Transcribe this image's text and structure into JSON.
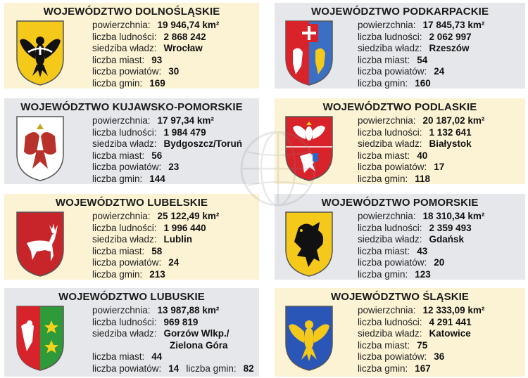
{
  "cards": [
    {
      "title": "WOJEWÓDZTWO DOLNOŚLĄSKIE",
      "crest": "eagle-black-on-gold",
      "rows": [
        {
          "label": "powierzchnia:",
          "value": "19 946,74 km²"
        },
        {
          "label": "liczba ludności:",
          "value": "2 868 242"
        },
        {
          "label": "siedziba władz:",
          "value": "Wrocław"
        },
        {
          "label": "liczba miast:",
          "value": "93"
        },
        {
          "label": "liczba powiatów:",
          "value": "30"
        },
        {
          "label": "liczba gmin:",
          "value": "169"
        }
      ]
    },
    {
      "title": "WOJEWÓDZTWO PODKARPACKIE",
      "crest": "cross-griffin-lion",
      "rows": [
        {
          "label": "powierzchnia:",
          "value": "17 845,73 km²"
        },
        {
          "label": "liczba ludności:",
          "value": "2 062 997"
        },
        {
          "label": "siedziba władz:",
          "value": "Rzeszów"
        },
        {
          "label": "liczba miast:",
          "value": "54"
        },
        {
          "label": "liczba powiatów:",
          "value": "24"
        },
        {
          "label": "liczba gmin:",
          "value": "160"
        }
      ]
    },
    {
      "title": "WOJEWÓDZTWO KUJAWSKO-POMORSKIE",
      "crest": "eagle-griffin-red",
      "rows": [
        {
          "label": "powierzchnia:",
          "value": "17 97,34 km²"
        },
        {
          "label": "liczba ludności:",
          "value": "1 984 479"
        },
        {
          "label": "siedziba władz:",
          "value": "Bydgoszcz/Toruń"
        },
        {
          "label": "liczba miast:",
          "value": "56"
        },
        {
          "label": "liczba powiatów:",
          "value": "23"
        },
        {
          "label": "liczba gmin:",
          "value": "144"
        }
      ]
    },
    {
      "title": "WOJEWÓDZTWO PODLASKIE",
      "crest": "white-eagle-pogon",
      "rows": [
        {
          "label": "powierzchnia:",
          "value": "20 187,02 km²"
        },
        {
          "label": "liczba ludności:",
          "value": "1 132 641"
        },
        {
          "label": "siedziba władz:",
          "value": "Białystok"
        },
        {
          "label": "liczba miast:",
          "value": "40"
        },
        {
          "label": "liczba powiatów:",
          "value": "17"
        },
        {
          "label": "liczba gmin:",
          "value": "118"
        }
      ]
    },
    {
      "title": "WOJEWÓDZTWO LUBELSKIE",
      "crest": "white-deer-on-red",
      "rows": [
        {
          "label": "powierzchnia:",
          "value": "25 122,49 km²"
        },
        {
          "label": "liczba ludności:",
          "value": "1 996 440"
        },
        {
          "label": "siedziba władz:",
          "value": "Lublin"
        },
        {
          "label": "liczba miast:",
          "value": "58"
        },
        {
          "label": "liczba powiatów:",
          "value": "24"
        },
        {
          "label": "liczba gmin:",
          "value": "213"
        }
      ]
    },
    {
      "title": "WOJEWÓDZTWO POMORSKIE",
      "crest": "black-griffin-on-gold",
      "rows": [
        {
          "label": "powierzchnia:",
          "value": "18 310,34 km²"
        },
        {
          "label": "liczba ludności:",
          "value": "2 359 493"
        },
        {
          "label": "siedziba władz:",
          "value": "Gdańsk"
        },
        {
          "label": "liczba miast:",
          "value": "43"
        },
        {
          "label": "liczba powiatów:",
          "value": "20"
        },
        {
          "label": "liczba gmin:",
          "value": "123"
        }
      ]
    },
    {
      "title": "WOJEWÓDZTWO LUBUSKIE",
      "crest": "eagle-red-green-stars",
      "rows": [
        {
          "label": "powierzchnia:",
          "value": "13 987,88 km²"
        },
        {
          "label": "liczba ludności:",
          "value": "969 819"
        },
        {
          "label": "siedziba władz:",
          "value": "Gorzów Wlkp./"
        },
        {
          "label": "",
          "value": "Zielona Góra"
        },
        {
          "label": "liczba miast:",
          "value": "44"
        },
        {
          "label": "liczba powiatów:",
          "value": "14",
          "label2": "liczba gmin:",
          "value2": "82"
        }
      ]
    },
    {
      "title": "WOJEWÓDZTWO ŚLĄSKIE",
      "crest": "gold-eagle-on-blue",
      "rows": [
        {
          "label": "powierzchnia:",
          "value": "12 333,09 km²"
        },
        {
          "label": "liczba ludności:",
          "value": "4 291 441"
        },
        {
          "label": "siedziba władz:",
          "value": "Katowice"
        },
        {
          "label": "liczba miast:",
          "value": "75"
        },
        {
          "label": "liczba powiatów:",
          "value": "36"
        },
        {
          "label": "liczba gmin:",
          "value": "167"
        }
      ]
    }
  ]
}
